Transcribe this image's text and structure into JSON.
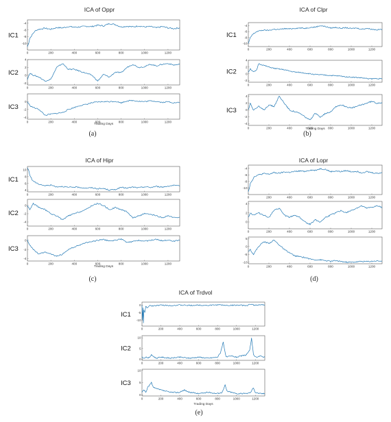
{
  "chart_data": [
    {
      "type": "line",
      "title": "ICA of Oppr",
      "caption": "(a)",
      "xlabel": "Trading Days",
      "xlim": [
        0,
        1300
      ],
      "xticks": [
        0,
        200,
        400,
        600,
        800,
        1000,
        1200
      ],
      "series": [
        {
          "name": "IC1",
          "ylim": [
            -12,
            -3
          ],
          "yticks": [
            -4,
            -6,
            -8,
            -10
          ],
          "x": [
            0,
            10,
            20,
            40,
            60,
            80,
            100,
            150,
            200,
            250,
            300,
            350,
            400,
            450,
            500,
            550,
            600,
            650,
            700,
            750,
            800,
            850,
            900,
            950,
            1000,
            1050,
            1100,
            1150,
            1200,
            1250,
            1300
          ],
          "y": [
            -11,
            -10,
            -8.5,
            -7.5,
            -6.5,
            -6,
            -5.8,
            -5.5,
            -5.8,
            -5.3,
            -5.4,
            -5,
            -5.2,
            -5.1,
            -4.9,
            -5,
            -4.6,
            -4.8,
            -4.1,
            -4.4,
            -5.1,
            -4.9,
            -5.1,
            -4.8,
            -5.1,
            -5,
            -5.4,
            -5,
            -5.4,
            -5.6,
            -5.4
          ]
        },
        {
          "name": "IC2",
          "ylim": [
            -2.5,
            4
          ],
          "yticks": [
            4,
            2,
            0,
            -2
          ],
          "x": [
            0,
            20,
            50,
            100,
            150,
            200,
            250,
            300,
            350,
            400,
            450,
            500,
            550,
            600,
            650,
            700,
            750,
            800,
            850,
            900,
            950,
            1000,
            1050,
            1100,
            1150,
            1200,
            1250,
            1300
          ],
          "y": [
            -1,
            0.5,
            0,
            -0.5,
            -1.5,
            -1,
            2,
            3,
            1.5,
            1.5,
            1,
            0.5,
            0,
            -1.5,
            0.2,
            -0.5,
            0.8,
            0.6,
            2,
            2.8,
            2,
            2.2,
            2.8,
            2.4,
            2.8,
            3,
            2.6,
            2.8
          ]
        },
        {
          "name": "IC3",
          "ylim": [
            -4.5,
            2
          ],
          "yticks": [
            0,
            -2,
            -4
          ],
          "x": [
            0,
            20,
            50,
            100,
            150,
            200,
            250,
            300,
            350,
            400,
            450,
            500,
            550,
            600,
            650,
            700,
            750,
            800,
            850,
            900,
            950,
            1000,
            1050,
            1100,
            1150,
            1200,
            1250,
            1300
          ],
          "y": [
            0,
            -1,
            -1.5,
            -2,
            -3.5,
            -3.2,
            -3,
            -2.8,
            -2,
            -1.5,
            -1,
            -0.7,
            -0.3,
            -0.1,
            0,
            0,
            0.1,
            -0.3,
            0.2,
            0.3,
            0.1,
            0,
            0.2,
            0.1,
            -0.2,
            0,
            -0.3,
            -0.2
          ]
        }
      ]
    },
    {
      "type": "line",
      "title": "ICA of Clpr",
      "caption": "(b)",
      "xlabel": "Trading Days",
      "xlim": [
        0,
        1300
      ],
      "xticks": [
        0,
        200,
        400,
        600,
        800,
        1000,
        1200
      ],
      "series": [
        {
          "name": "IC1",
          "ylim": [
            -11,
            -3
          ],
          "yticks": [
            -4,
            -6,
            -8,
            -10
          ],
          "x": [
            0,
            10,
            20,
            40,
            60,
            80,
            100,
            150,
            200,
            250,
            300,
            350,
            400,
            450,
            500,
            550,
            600,
            650,
            700,
            750,
            800,
            850,
            900,
            950,
            1000,
            1050,
            1100,
            1150,
            1200,
            1250,
            1300
          ],
          "y": [
            -10,
            -9,
            -8,
            -7,
            -6.5,
            -6,
            -5.8,
            -5.5,
            -5.6,
            -5.2,
            -5.3,
            -5,
            -5.1,
            -4.9,
            -4.8,
            -4.9,
            -4.6,
            -4.5,
            -4,
            -4.3,
            -4.8,
            -4.6,
            -4.9,
            -4.7,
            -5,
            -4.8,
            -5.2,
            -4.9,
            -5.2,
            -5.4,
            -5.2
          ]
        },
        {
          "name": "IC2",
          "ylim": [
            -2.5,
            4
          ],
          "yticks": [
            4,
            2,
            0,
            -2
          ],
          "x": [
            0,
            20,
            50,
            80,
            100,
            150,
            200,
            250,
            300,
            350,
            400,
            450,
            500,
            550,
            600,
            650,
            700,
            750,
            800,
            850,
            900,
            950,
            1000,
            1050,
            1100,
            1150,
            1200,
            1250,
            1300
          ],
          "y": [
            0.5,
            1.5,
            0.5,
            1,
            3,
            2.5,
            2,
            1.6,
            1.4,
            1.2,
            0.8,
            0.5,
            0.4,
            0.2,
            0,
            -0.2,
            -0.3,
            -0.4,
            -0.5,
            -0.6,
            -0.7,
            -0.9,
            -1,
            -1.1,
            -1.2,
            -1.4,
            -1.5,
            -1.4,
            -1.5
          ]
        },
        {
          "name": "IC3",
          "ylim": [
            -4.5,
            4.5
          ],
          "yticks": [
            4,
            2,
            0,
            -2,
            -4
          ],
          "x": [
            0,
            20,
            50,
            100,
            150,
            200,
            250,
            300,
            350,
            400,
            450,
            500,
            550,
            600,
            650,
            700,
            750,
            800,
            850,
            900,
            950,
            1000,
            1050,
            1100,
            1150,
            1200,
            1250,
            1300
          ],
          "y": [
            0,
            2,
            0,
            1,
            0,
            1.5,
            1,
            4,
            2,
            0,
            -0.5,
            -1,
            -2,
            -3,
            -1,
            -2,
            -1,
            -0.5,
            1,
            1.5,
            1,
            0.5,
            1,
            1.5,
            2,
            2.5,
            2,
            2.2
          ]
        }
      ]
    },
    {
      "type": "line",
      "title": "ICA of Hipr",
      "caption": "(c)",
      "xlabel": "Trading Days",
      "xlim": [
        0,
        1300
      ],
      "xticks": [
        0,
        200,
        400,
        600,
        800,
        1000,
        1200
      ],
      "series": [
        {
          "name": "IC1",
          "ylim": [
            3.5,
            11
          ],
          "yticks": [
            10,
            8,
            6,
            4
          ],
          "x": [
            0,
            10,
            20,
            40,
            60,
            80,
            100,
            150,
            200,
            250,
            300,
            350,
            400,
            450,
            500,
            550,
            600,
            650,
            700,
            750,
            800,
            850,
            900,
            950,
            1000,
            1050,
            1100,
            1150,
            1200,
            1250,
            1300
          ],
          "y": [
            10.5,
            10,
            8.5,
            7,
            6.5,
            6,
            5.8,
            5.3,
            5.5,
            5,
            5.1,
            4.8,
            4.9,
            4.8,
            4.6,
            4.7,
            4.4,
            4.5,
            4,
            4.2,
            4.8,
            4.6,
            4.9,
            4.7,
            5,
            4.8,
            5.1,
            4.9,
            5.2,
            5.4,
            5.2
          ]
        },
        {
          "name": "IC2",
          "ylim": [
            -5,
            1.5
          ],
          "yticks": [
            0,
            -2,
            -4
          ],
          "x": [
            0,
            20,
            50,
            100,
            150,
            200,
            250,
            300,
            350,
            400,
            450,
            500,
            550,
            600,
            650,
            700,
            750,
            800,
            850,
            900,
            950,
            1000,
            1050,
            1100,
            1150,
            1200,
            1250,
            1300
          ],
          "y": [
            0,
            -1,
            0.5,
            -0.5,
            -1,
            -2,
            -2.5,
            -3.5,
            -2.5,
            -2,
            -1.5,
            -1,
            0,
            0.5,
            0,
            -1,
            -0.5,
            -1,
            -1.5,
            -3,
            -2.5,
            -2,
            -2.2,
            -2.5,
            -3,
            -2.5,
            -3,
            -2.8
          ]
        },
        {
          "name": "IC3",
          "ylim": [
            -4.5,
            1
          ],
          "yticks": [
            0,
            -2,
            -4
          ],
          "x": [
            0,
            20,
            50,
            100,
            150,
            200,
            250,
            300,
            350,
            400,
            450,
            500,
            550,
            600,
            650,
            700,
            750,
            800,
            850,
            900,
            950,
            1000,
            1050,
            1100,
            1150,
            1200,
            1250,
            1300
          ],
          "y": [
            0,
            -1,
            -2,
            -3,
            -2.5,
            -3,
            -3.5,
            -3,
            -2,
            -1.5,
            -1,
            -0.5,
            -0.3,
            0,
            0.2,
            -0.2,
            0,
            0.3,
            -0.5,
            -0.3,
            0,
            -0.2,
            0,
            0.2,
            -0.1,
            0.1,
            -0.2,
            0
          ]
        }
      ]
    },
    {
      "type": "line",
      "title": "ICA of Lopr",
      "caption": "(d)",
      "xlabel": "",
      "xlim": [
        0,
        1300
      ],
      "xticks": [
        0,
        200,
        400,
        600,
        800,
        1000,
        1200
      ],
      "series": [
        {
          "name": "",
          "ylim": [
            -12,
            -3
          ],
          "yticks": [
            -4,
            -6,
            -8,
            -10
          ],
          "x": [
            0,
            10,
            20,
            40,
            60,
            80,
            100,
            150,
            200,
            250,
            300,
            350,
            400,
            450,
            500,
            550,
            600,
            650,
            700,
            750,
            800,
            850,
            900,
            950,
            1000,
            1050,
            1100,
            1150,
            1200,
            1250,
            1300
          ],
          "y": [
            -11,
            -10,
            -8.5,
            -7.5,
            -6.5,
            -6.2,
            -6,
            -5.6,
            -5.8,
            -5.3,
            -5.5,
            -5.1,
            -5.2,
            -5,
            -4.8,
            -4.9,
            -4.5,
            -4.6,
            -4.1,
            -4.3,
            -5,
            -4.8,
            -5,
            -4.7,
            -5,
            -4.9,
            -5.3,
            -5,
            -5.3,
            -5.5,
            -5.3
          ]
        },
        {
          "name": "",
          "ylim": [
            -1.5,
            4.5
          ],
          "yticks": [
            4,
            2,
            0
          ],
          "x": [
            0,
            20,
            50,
            100,
            150,
            200,
            250,
            300,
            350,
            400,
            450,
            500,
            550,
            600,
            650,
            700,
            750,
            800,
            850,
            900,
            950,
            1000,
            1050,
            1100,
            1150,
            1200,
            1250,
            1300
          ],
          "y": [
            1,
            2,
            1.5,
            2,
            1.5,
            1,
            2.5,
            3,
            1.5,
            1,
            1.5,
            1,
            0,
            -0.5,
            0.5,
            0,
            1,
            1.5,
            2,
            2.5,
            2,
            2.5,
            3,
            3.5,
            3,
            3.2,
            3.5,
            3.2
          ]
        },
        {
          "name": "",
          "ylim": [
            -11,
            6
          ],
          "yticks": [
            5,
            0,
            -5,
            -10
          ],
          "x": [
            0,
            20,
            50,
            100,
            150,
            200,
            250,
            300,
            350,
            400,
            450,
            500,
            550,
            600,
            650,
            700,
            750,
            800,
            850,
            900,
            950,
            1000,
            1050,
            1100,
            1150,
            1200,
            1250,
            1300
          ],
          "y": [
            -3,
            -2,
            -5,
            0,
            3,
            2,
            4,
            1,
            -2,
            -4,
            -6,
            -6.5,
            -7,
            -8,
            -8.5,
            -8.5,
            -9,
            -9.5,
            -9,
            -9.5,
            -10,
            -10,
            -9.8,
            -9.5,
            -9.6,
            -9.4,
            -9.2,
            -9.3
          ]
        }
      ]
    },
    {
      "type": "line",
      "title": "ICA of Trdvol",
      "caption": "(e)",
      "xlabel": "Trading Days",
      "xlim": [
        0,
        1300
      ],
      "xticks": [
        0,
        200,
        400,
        600,
        800,
        1000,
        1200
      ],
      "series": [
        {
          "name": "IC1",
          "ylim": [
            -14,
            2
          ],
          "yticks": [
            0,
            -5,
            -10
          ],
          "x": [
            0,
            5,
            10,
            15,
            20,
            30,
            40,
            60,
            80,
            100,
            150,
            200,
            300,
            400,
            500,
            600,
            700,
            800,
            850,
            900,
            1000,
            1100,
            1150,
            1200,
            1250,
            1300
          ],
          "y": [
            0,
            -10,
            -2,
            -12,
            -3,
            -5,
            -1,
            -2,
            0,
            -0.5,
            -0.3,
            0,
            -0.3,
            0,
            -0.2,
            0,
            -0.2,
            0.2,
            0,
            -0.2,
            0,
            -0.3,
            0.5,
            0,
            0.2,
            0
          ]
        },
        {
          "name": "IC2",
          "ylim": [
            -0.5,
            11
          ],
          "yticks": [
            10,
            5,
            0
          ],
          "x": [
            0,
            20,
            40,
            60,
            80,
            100,
            150,
            200,
            300,
            400,
            500,
            600,
            700,
            800,
            830,
            860,
            890,
            950,
            1000,
            1100,
            1140,
            1160,
            1180,
            1200,
            1250,
            1300
          ],
          "y": [
            1,
            0.5,
            1,
            0.5,
            1,
            2,
            0.5,
            1,
            0.5,
            1,
            0.5,
            1,
            0.5,
            1,
            3,
            8,
            1,
            1.5,
            1,
            2,
            4,
            10,
            2,
            1,
            1.5,
            1
          ]
        },
        {
          "name": "IC3",
          "ylim": [
            -0.5,
            10.5
          ],
          "yticks": [
            10,
            5,
            0
          ],
          "x": [
            0,
            20,
            40,
            60,
            80,
            100,
            120,
            150,
            200,
            250,
            300,
            400,
            450,
            500,
            600,
            700,
            800,
            850,
            880,
            900,
            950,
            1000,
            1100,
            1150,
            1180,
            1200,
            1250,
            1300
          ],
          "y": [
            1,
            2,
            1,
            3,
            4,
            5,
            3,
            2.5,
            2,
            1.5,
            1,
            1,
            2,
            1,
            0.5,
            1,
            0.5,
            1,
            4,
            1.5,
            1,
            0.5,
            0.5,
            1,
            3,
            1,
            0.5,
            0.5
          ]
        }
      ]
    }
  ]
}
